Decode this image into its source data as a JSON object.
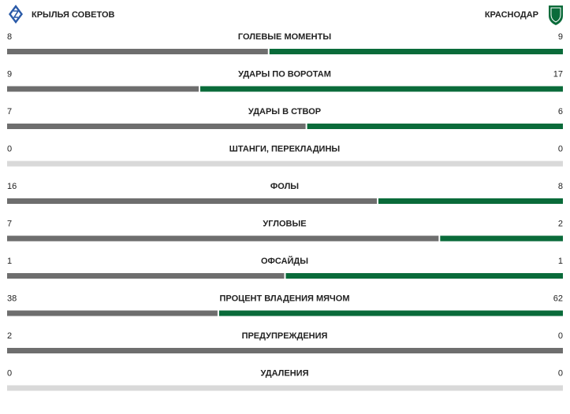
{
  "header": {
    "home": "КРЫЛЬЯ СОВЕТОВ",
    "away": "КРАСНОДАР"
  },
  "stats": [
    {
      "label": "ГОЛЕВЫЕ МОМЕНТЫ",
      "home": 8,
      "away": 9
    },
    {
      "label": "УДАРЫ ПО ВОРОТАМ",
      "home": 9,
      "away": 17
    },
    {
      "label": "УДАРЫ В СТВОР",
      "home": 7,
      "away": 6
    },
    {
      "label": "ШТАНГИ, ПЕРЕКЛАДИНЫ",
      "home": 0,
      "away": 0
    },
    {
      "label": "ФОЛЫ",
      "home": 16,
      "away": 8
    },
    {
      "label": "УГЛОВЫЕ",
      "home": 7,
      "away": 2
    },
    {
      "label": "ОФСАЙДЫ",
      "home": 1,
      "away": 1
    },
    {
      "label": "ПРОЦЕНТ ВЛАДЕНИЯ МЯЧОМ",
      "home": 38,
      "away": 62
    },
    {
      "label": "ПРЕДУПРЕЖДЕНИЯ",
      "home": 2,
      "away": 0
    },
    {
      "label": "УДАЛЕНИЯ",
      "home": 0,
      "away": 0
    }
  ]
}
